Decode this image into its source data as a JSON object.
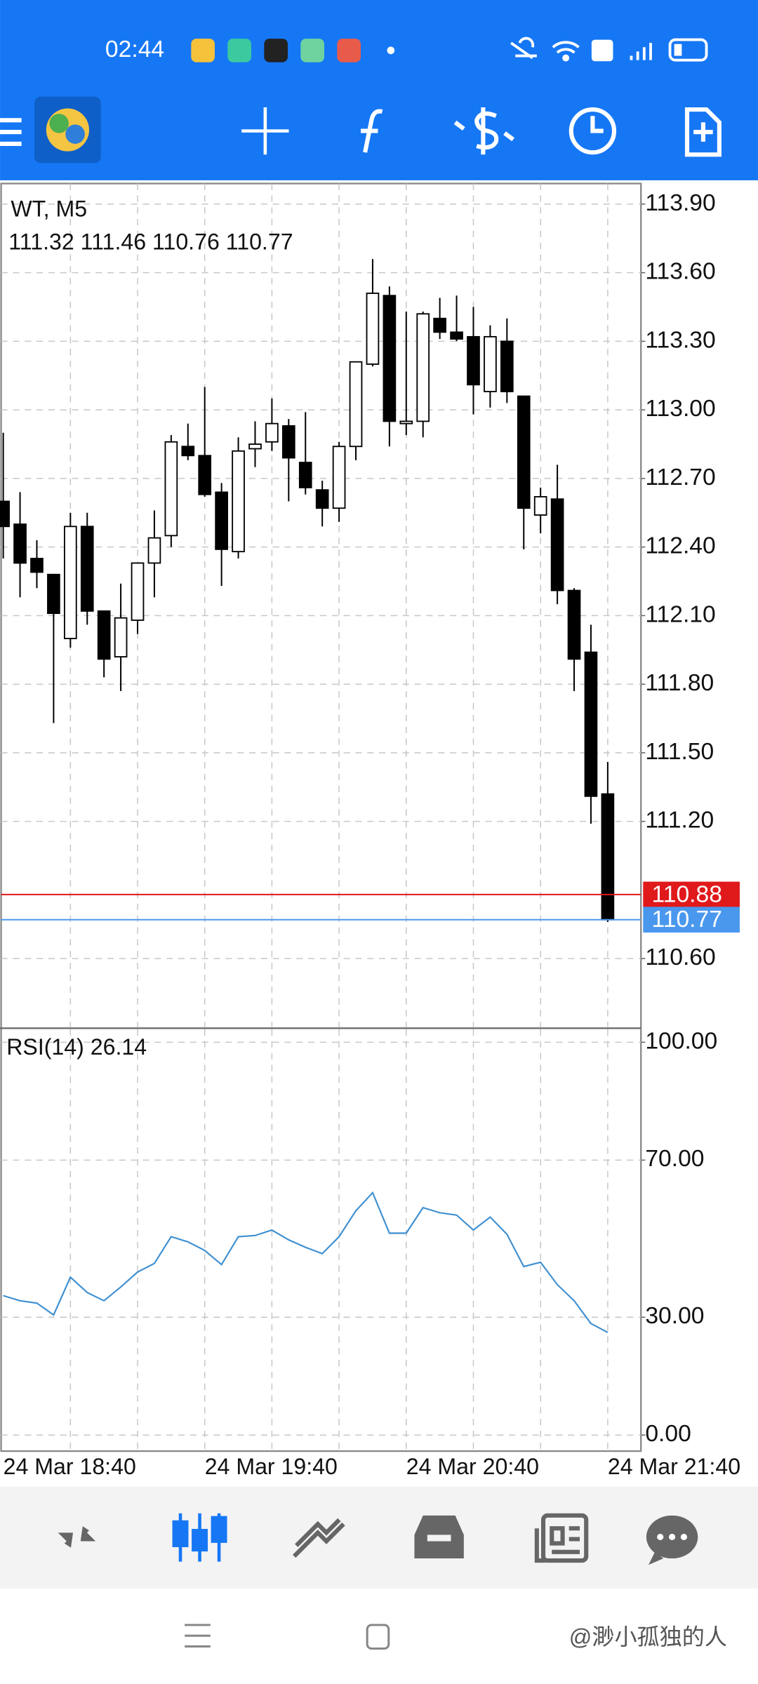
{
  "status_bar": {
    "time": "02:44"
  },
  "watermark": "@渺小孤独的人",
  "chart_data": [
    {
      "type": "candlestick",
      "title": "WT, M5",
      "ohlc_text": "111.32 111.46 110.76 110.77",
      "categories": [
        "24 Mar 18:40",
        null,
        null,
        null,
        null,
        null,
        null,
        null,
        null,
        null,
        null,
        null,
        "24 Mar 19:40",
        null,
        null,
        null,
        null,
        null,
        null,
        null,
        null,
        null,
        null,
        null,
        "24 Mar 20:40",
        null,
        null,
        null,
        null,
        null,
        null,
        null,
        null,
        null,
        null,
        null,
        "24 Mar 21:40"
      ],
      "open": [
        112.6,
        112.5,
        112.35,
        112.28,
        112.0,
        112.49,
        112.12,
        111.92,
        112.08,
        112.33,
        112.45,
        112.84,
        112.8,
        112.64,
        112.38,
        112.83,
        112.86,
        112.93,
        112.77,
        112.65,
        112.57,
        112.84,
        113.2,
        113.5,
        112.94,
        112.95,
        113.4,
        113.34,
        113.32,
        113.08,
        113.3,
        113.06,
        112.54,
        112.61,
        112.21,
        111.94,
        111.32
      ],
      "high": [
        112.9,
        112.64,
        112.43,
        112.28,
        112.55,
        112.55,
        112.12,
        112.24,
        112.33,
        112.56,
        112.89,
        112.94,
        113.1,
        112.68,
        112.88,
        112.95,
        113.05,
        112.96,
        112.99,
        112.69,
        112.86,
        113.21,
        113.66,
        113.54,
        113.43,
        113.43,
        113.49,
        113.5,
        113.45,
        113.37,
        113.4,
        113.06,
        112.66,
        112.76,
        112.22,
        112.06,
        111.46
      ],
      "low": [
        112.35,
        112.18,
        112.22,
        111.63,
        111.96,
        112.06,
        111.83,
        111.77,
        112.02,
        112.18,
        112.4,
        112.78,
        112.62,
        112.23,
        112.35,
        112.75,
        112.82,
        112.6,
        112.63,
        112.49,
        112.51,
        112.78,
        113.19,
        112.84,
        112.89,
        112.88,
        113.31,
        113.3,
        112.98,
        113.01,
        113.03,
        112.39,
        112.46,
        112.15,
        111.77,
        111.19,
        110.76
      ],
      "close": [
        112.49,
        112.33,
        112.29,
        112.11,
        112.49,
        112.12,
        111.91,
        112.09,
        112.33,
        112.44,
        112.86,
        112.8,
        112.63,
        112.39,
        112.82,
        112.85,
        112.94,
        112.79,
        112.66,
        112.57,
        112.84,
        113.21,
        113.51,
        112.95,
        112.95,
        113.42,
        113.34,
        113.31,
        113.11,
        113.32,
        113.08,
        112.57,
        112.62,
        112.21,
        111.91,
        111.31,
        110.77
      ],
      "up_color": "#ffffff",
      "down_color": "#000000",
      "price_lines": [
        {
          "value": 110.88,
          "color": "#e0191b"
        },
        {
          "value": 110.77,
          "color": "#4a98ee"
        }
      ],
      "ylim": [
        110.3,
        113.99
      ],
      "yticks": [
        {
          "value": 110.6,
          "label": "110.60"
        },
        {
          "value": 111.2,
          "label": "111.20"
        },
        {
          "value": 111.5,
          "label": "111.50"
        },
        {
          "value": 111.8,
          "label": "111.80"
        },
        {
          "value": 112.1,
          "label": "112.10"
        },
        {
          "value": 112.4,
          "label": "112.40"
        },
        {
          "value": 112.7,
          "label": "112.70"
        },
        {
          "value": 113.0,
          "label": "113.00"
        },
        {
          "value": 113.3,
          "label": "113.30"
        },
        {
          "value": 113.6,
          "label": "113.60"
        },
        {
          "value": 113.9,
          "label": "113.90"
        }
      ],
      "grid": true
    },
    {
      "type": "line",
      "title": "RSI(14) 26.14",
      "series": [
        {
          "color": "#3d8fd1",
          "values": [
            35.5,
            34.2,
            33.6,
            30.6,
            40.2,
            36.3,
            34.2,
            37.7,
            41.5,
            43.7,
            50.5,
            49.2,
            47.0,
            43.4,
            50.5,
            50.8,
            52.2,
            49.7,
            47.8,
            46.2,
            50.5,
            57.1,
            61.7,
            51.4,
            51.4,
            57.9,
            56.6,
            56.0,
            52.2,
            55.5,
            51.1,
            42.9,
            44.0,
            38.3,
            34.2,
            28.4,
            26.14
          ]
        }
      ],
      "ylim": [
        -3.8,
        103.3
      ],
      "yticks": [
        {
          "value": 0,
          "label": "0.00"
        },
        {
          "value": 30,
          "label": "30.00"
        },
        {
          "value": 70,
          "label": "70.00"
        },
        {
          "value": 100,
          "label": "100.00"
        }
      ],
      "grid": true
    }
  ]
}
